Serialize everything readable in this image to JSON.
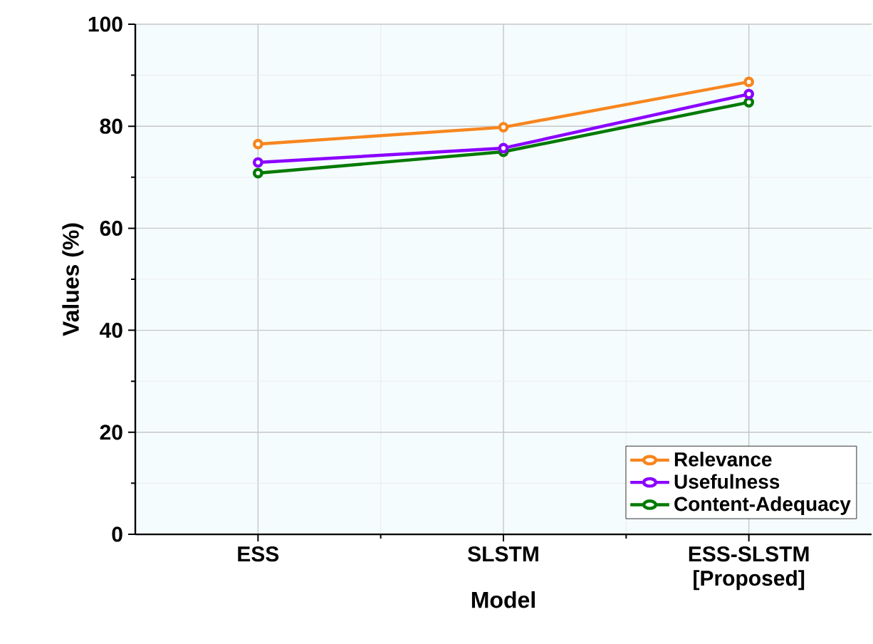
{
  "chart_data": {
    "type": "line",
    "xlabel": "Model",
    "ylabel": "Values (%)",
    "categories": [
      "ESS",
      "SLSTM",
      "ESS-SLSTM [Proposed]"
    ],
    "series": [
      {
        "name": "Relevance",
        "color": "#f7861e",
        "values": [
          76.5,
          79.8,
          88.7
        ]
      },
      {
        "name": "Usefulness",
        "color": "#8a00ff",
        "values": [
          72.9,
          75.7,
          86.3
        ]
      },
      {
        "name": "Content-Adequacy",
        "color": "#007a00",
        "values": [
          70.8,
          75.0,
          84.7
        ]
      }
    ],
    "ylim": [
      0,
      100
    ],
    "yticks": [
      0,
      20,
      40,
      60,
      80,
      100
    ],
    "grid": true,
    "legend": "bottom right",
    "marker": "circle",
    "line_style": "solid"
  }
}
